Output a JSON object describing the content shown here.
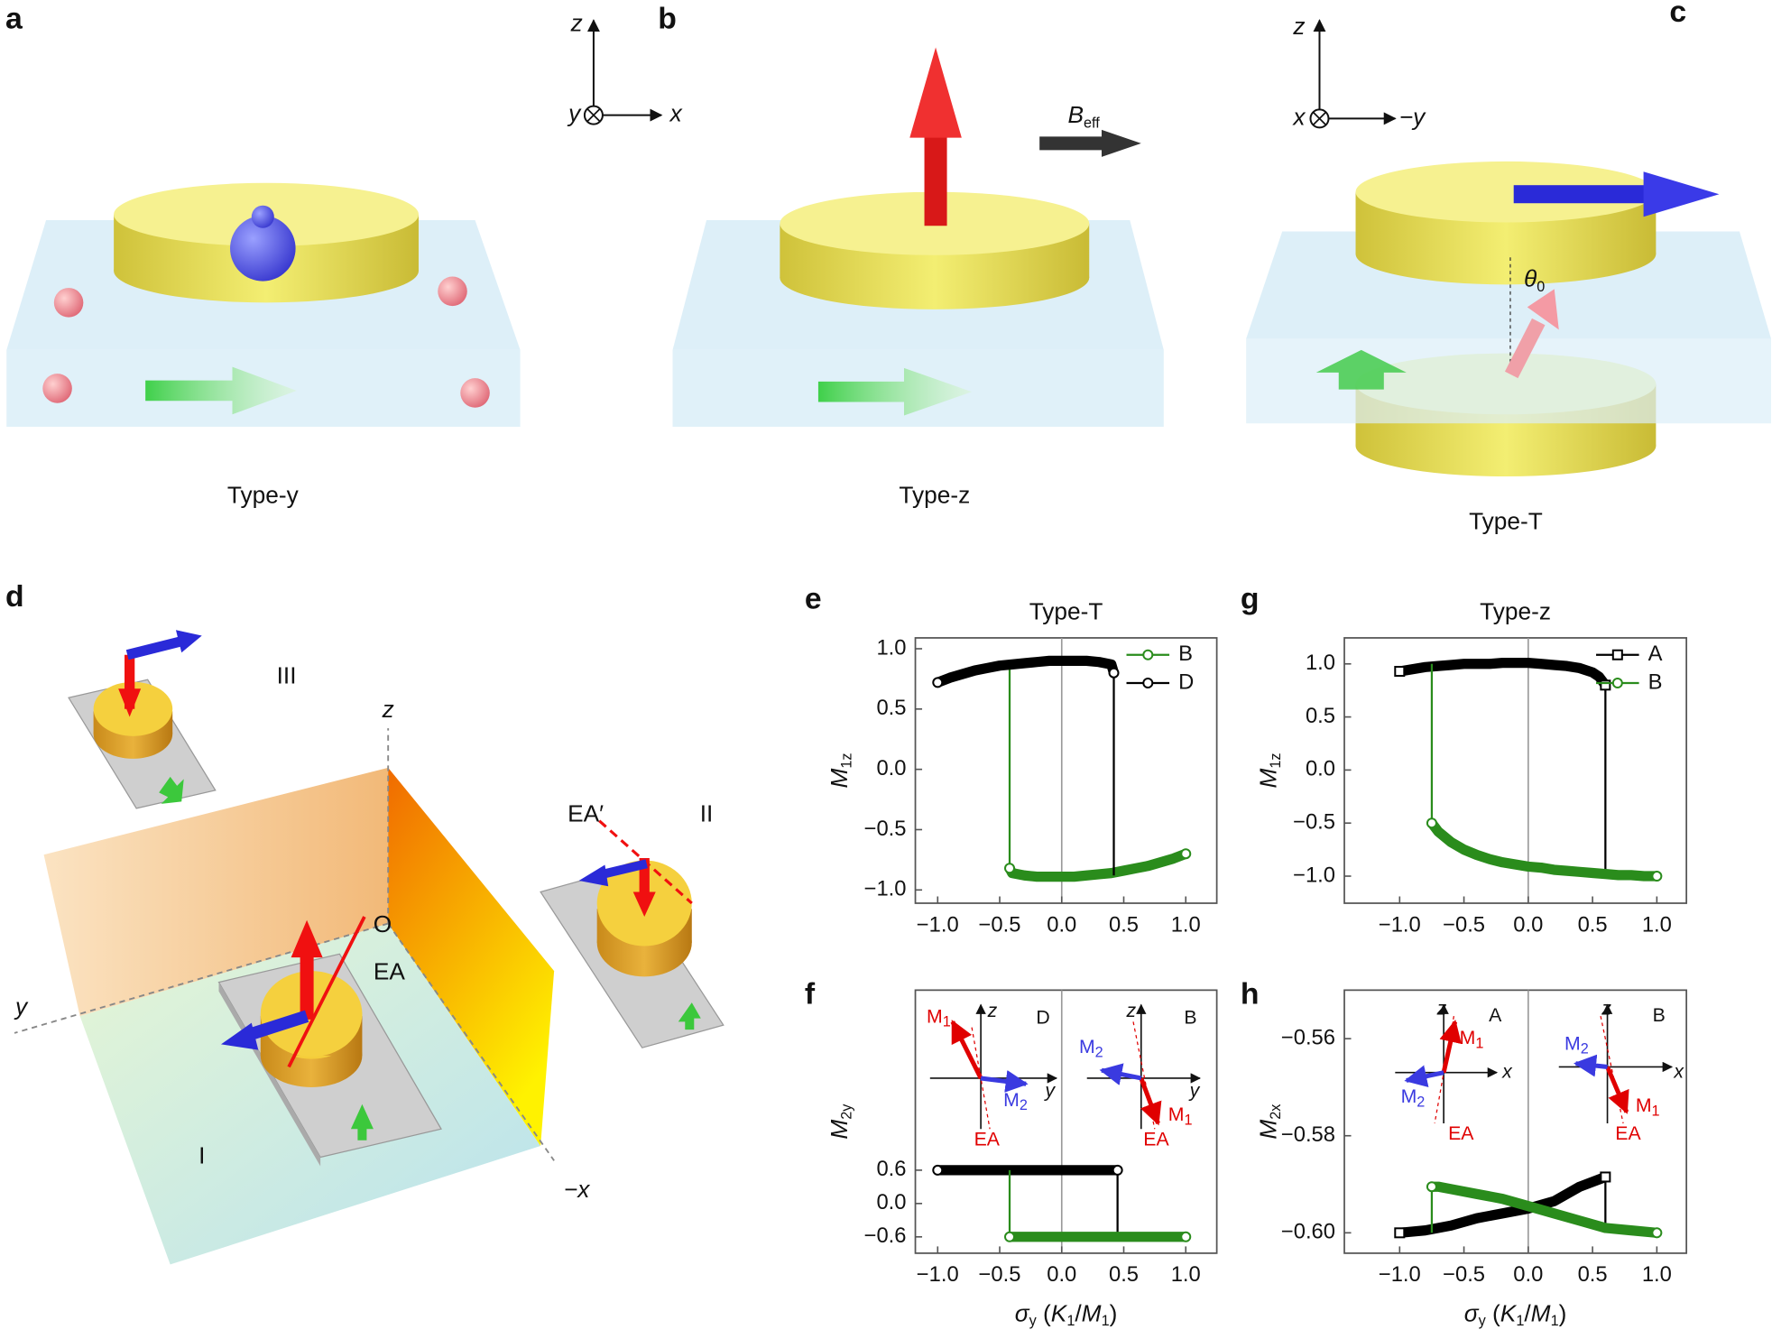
{
  "panel_labels": [
    "a",
    "b",
    "c",
    "d",
    "e",
    "f",
    "g",
    "h"
  ],
  "panel_a": {
    "caption": "Type-y",
    "axes": [
      "z",
      "y",
      "x"
    ]
  },
  "panel_b": {
    "caption": "Type-z",
    "field": [
      "B",
      "eff"
    ]
  },
  "panel_c": {
    "caption": "Type-T",
    "axes": [
      "z",
      "x",
      "−y"
    ],
    "angle": [
      "θ",
      "0"
    ]
  },
  "panel_d": {
    "regions": [
      "III",
      "II",
      "I"
    ],
    "axes": [
      "z",
      "y",
      "−x"
    ],
    "origin": "O",
    "easy_axis": "EA",
    "easy_axis_alt": "EA′"
  },
  "chart_data": [
    {
      "type": "line",
      "title": "Type-T",
      "ylabel": [
        "M",
        "1z"
      ],
      "legend": "upper right",
      "xlim": [
        -1.18,
        1.25
      ],
      "ylim": [
        -1.11,
        1.09
      ],
      "xticks": [
        {
          "value": -1,
          "label": "−1.0"
        },
        {
          "value": -0.5,
          "label": "−0.5"
        },
        {
          "value": 0,
          "label": "0.0"
        },
        {
          "value": 0.5,
          "label": "0.5"
        },
        {
          "value": 1,
          "label": "1.0"
        }
      ],
      "yticks": [
        {
          "value": 1,
          "label": "1.0"
        },
        {
          "value": 0.5,
          "label": "0.5"
        },
        {
          "value": 0,
          "label": "0.0"
        },
        {
          "value": -0.5,
          "label": "−0.5"
        },
        {
          "value": -1,
          "label": "−1.0"
        }
      ],
      "series": [
        {
          "name": "B",
          "color": "#2a8c1c",
          "marker": "circle",
          "x": [
            1.0,
            0.9,
            0.8,
            0.7,
            0.6,
            0.5,
            0.4,
            0.3,
            0.2,
            0.1,
            0,
            -0.1,
            -0.2,
            -0.3,
            -0.4,
            -0.42,
            -0.42
          ],
          "values": [
            -0.7,
            -0.74,
            -0.77,
            -0.8,
            -0.82,
            -0.84,
            -0.86,
            -0.87,
            -0.88,
            -0.89,
            -0.89,
            -0.89,
            -0.89,
            -0.88,
            -0.86,
            -0.82,
            0.88
          ]
        },
        {
          "name": "D",
          "color": "#000000",
          "marker": "circle",
          "x": [
            -1,
            -0.9,
            -0.8,
            -0.7,
            -0.6,
            -0.5,
            -0.4,
            -0.3,
            -0.2,
            -0.1,
            0,
            0.1,
            0.2,
            0.3,
            0.4,
            0.42,
            0.42
          ],
          "values": [
            0.72,
            0.76,
            0.79,
            0.82,
            0.84,
            0.86,
            0.87,
            0.88,
            0.89,
            0.9,
            0.9,
            0.9,
            0.9,
            0.89,
            0.87,
            0.8,
            -0.88
          ]
        }
      ]
    },
    {
      "type": "line",
      "ylabel": [
        "M",
        "2y"
      ],
      "xlabel": [
        "σ",
        "y",
        " (",
        "K",
        "1",
        "/",
        "M",
        "1",
        ")"
      ],
      "xlim": [
        -1.18,
        1.25
      ],
      "ylim": [
        -0.894,
        3.84
      ],
      "xticks": [
        {
          "value": -1,
          "label": "−1.0"
        },
        {
          "value": -0.5,
          "label": "−0.5"
        },
        {
          "value": 0,
          "label": "0.0"
        },
        {
          "value": 0.5,
          "label": "0.5"
        },
        {
          "value": 1,
          "label": "1.0"
        }
      ],
      "yticks": [
        0.6,
        {
          "value": 0,
          "label": "0.0"
        },
        {
          "value": -0.6,
          "label": "−0.6"
        }
      ],
      "insets": [
        [
          "M",
          "1",
          "z",
          "D",
          "M",
          "2",
          "y",
          "EA"
        ],
        [
          "z",
          "B",
          "M",
          "2",
          "y",
          "M",
          "1",
          "EA"
        ]
      ],
      "series": [
        {
          "name": "D",
          "color": "#000000",
          "marker": "circle",
          "x": [
            -1,
            -0.5,
            0,
            0.45,
            0.45
          ],
          "values": [
            0.6,
            0.6,
            0.6,
            0.6,
            -0.6
          ]
        },
        {
          "name": "B",
          "color": "#2a8c1c",
          "marker": "circle",
          "x": [
            1,
            0.5,
            0,
            -0.42,
            -0.42
          ],
          "values": [
            -0.6,
            -0.6,
            -0.6,
            -0.6,
            0.6
          ]
        }
      ]
    },
    {
      "type": "line",
      "title": "Type-z",
      "ylabel": [
        "M",
        "1z"
      ],
      "legend": "upper right",
      "xlim": [
        -1.43,
        1.23
      ],
      "ylim": [
        -1.255,
        1.245
      ],
      "xticks": [
        {
          "value": -1,
          "label": "−1.0"
        },
        {
          "value": -0.5,
          "label": "−0.5"
        },
        {
          "value": 0,
          "label": "0.0"
        },
        {
          "value": 0.5,
          "label": "0.5"
        },
        {
          "value": 1,
          "label": "1.0"
        }
      ],
      "yticks": [
        {
          "value": 1,
          "label": "1.0"
        },
        {
          "value": 0.5,
          "label": "0.5"
        },
        {
          "value": 0,
          "label": "0.0"
        },
        {
          "value": -0.5,
          "label": "−0.5"
        },
        {
          "value": -1,
          "label": "−1.0"
        }
      ],
      "series": [
        {
          "name": "A",
          "color": "#000000",
          "marker": "square",
          "x": [
            -1,
            -0.9,
            -0.8,
            -0.7,
            -0.6,
            -0.5,
            -0.4,
            -0.3,
            -0.2,
            -0.1,
            0,
            0.1,
            0.2,
            0.3,
            0.4,
            0.5,
            0.55,
            0.6,
            0.6
          ],
          "values": [
            0.93,
            0.95,
            0.97,
            0.98,
            0.99,
            1.0,
            1.0,
            1.0,
            1.01,
            1.01,
            1.01,
            1.0,
            0.99,
            0.98,
            0.96,
            0.92,
            0.88,
            0.8,
            -0.98
          ]
        },
        {
          "name": "B",
          "color": "#2a8c1c",
          "marker": "circle",
          "x": [
            1.0,
            0.9,
            0.8,
            0.7,
            0.6,
            0.5,
            0.4,
            0.3,
            0.2,
            0.1,
            0,
            -0.1,
            -0.2,
            -0.3,
            -0.4,
            -0.5,
            -0.6,
            -0.7,
            -0.75,
            -0.75
          ],
          "values": [
            -1.0,
            -1.0,
            -0.99,
            -0.99,
            -0.98,
            -0.97,
            -0.96,
            -0.95,
            -0.94,
            -0.92,
            -0.91,
            -0.89,
            -0.87,
            -0.84,
            -0.8,
            -0.75,
            -0.68,
            -0.58,
            -0.5,
            1.0
          ]
        }
      ]
    },
    {
      "type": "line",
      "ylabel": [
        "M",
        "2x"
      ],
      "xlabel": [
        "σ",
        "y",
        " (",
        "K",
        "1",
        "/",
        "M",
        "1",
        ")"
      ],
      "xlim": [
        -1.43,
        1.23
      ],
      "ylim": [
        -0.6042,
        -0.55
      ],
      "xticks": [
        {
          "value": -1,
          "label": "−1.0"
        },
        {
          "value": -0.5,
          "label": "−0.5"
        },
        {
          "value": 0,
          "label": "0.0"
        },
        {
          "value": 0.5,
          "label": "0.5"
        },
        {
          "value": 1,
          "label": "1.0"
        }
      ],
      "yticks": [
        {
          "value": -0.56,
          "label": "−0.56"
        },
        {
          "value": -0.58,
          "label": "−0.58"
        },
        {
          "value": -0.6,
          "label": "−0.60"
        }
      ],
      "insets": [
        [
          "z",
          "A",
          "M",
          "1",
          "M",
          "2",
          "x",
          "EA"
        ],
        [
          "z",
          "B",
          "M",
          "2",
          "x",
          "M",
          "1",
          "EA"
        ]
      ],
      "series": [
        {
          "name": "A",
          "color": "#000000",
          "marker": "square",
          "x": [
            -1,
            -0.8,
            -0.6,
            -0.4,
            -0.2,
            0,
            0.2,
            0.4,
            0.6,
            0.6
          ],
          "values": [
            -0.6,
            -0.5995,
            -0.5985,
            -0.597,
            -0.596,
            -0.595,
            -0.5935,
            -0.5905,
            -0.5885,
            -0.6
          ]
        },
        {
          "name": "B",
          "color": "#2a8c1c",
          "marker": "circle",
          "x": [
            1,
            0.8,
            0.6,
            0.4,
            0.2,
            0,
            -0.2,
            -0.4,
            -0.6,
            -0.7,
            -0.75,
            -0.75
          ],
          "values": [
            -0.6,
            -0.5995,
            -0.599,
            -0.5975,
            -0.596,
            -0.5945,
            -0.593,
            -0.592,
            -0.591,
            -0.5905,
            -0.5905,
            -0.6
          ]
        }
      ]
    }
  ]
}
